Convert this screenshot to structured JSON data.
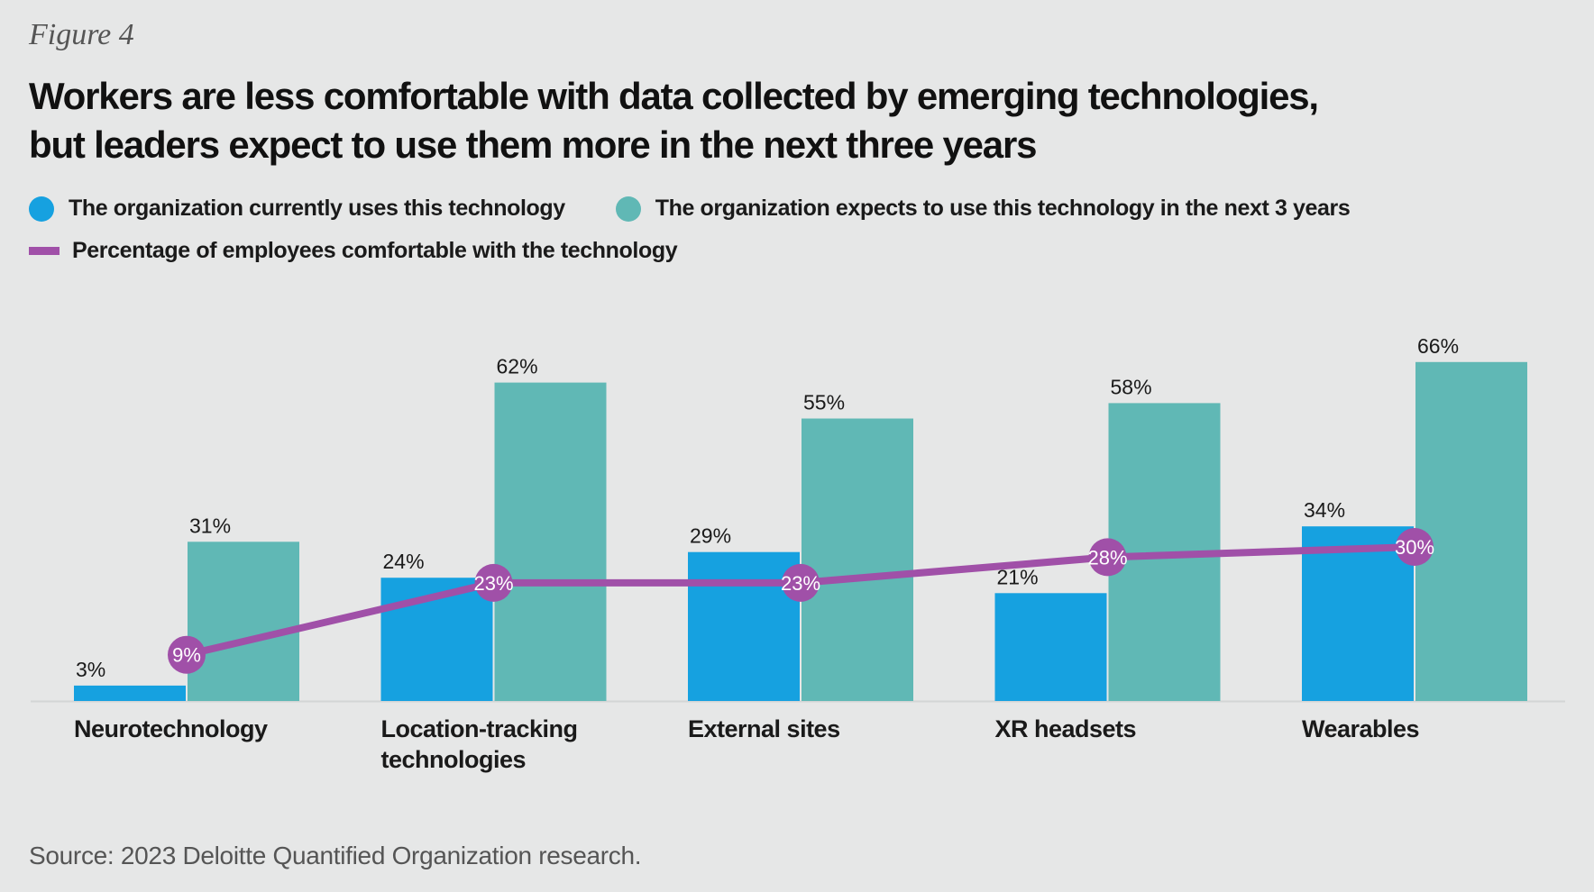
{
  "header": {
    "eyebrow": "Figure 4",
    "title_line1": "Workers are less comfortable with data collected by emerging technologies,",
    "title_line2": "but leaders expect to use them more in the next three years"
  },
  "legend": {
    "current": "The organization currently uses this technology",
    "expected": "The organization expects to use this technology in the next 3 years",
    "comfort": "Percentage of employees comfortable with the technology"
  },
  "source": "Source: 2023 Deloitte Quantified Organization research.",
  "colors": {
    "current": "#16a1e0",
    "expected": "#60b8b5",
    "comfort": "#a050a8",
    "baseline": "#d3d5d5",
    "text": "#1a1a1a"
  },
  "chart_data": {
    "type": "bar",
    "categories": [
      [
        "Neurotechnology"
      ],
      [
        "Location-tracking",
        "technologies"
      ],
      [
        "External sites"
      ],
      [
        "XR headsets"
      ],
      [
        "Wearables"
      ]
    ],
    "series": [
      {
        "name": "The organization currently uses this technology",
        "kind": "bar",
        "values": [
          3,
          24,
          29,
          21,
          34
        ],
        "labels": [
          "3%",
          "24%",
          "29%",
          "21%",
          "34%"
        ]
      },
      {
        "name": "The organization expects to use this technology in the next 3 years",
        "kind": "bar",
        "values": [
          31,
          62,
          55,
          58,
          66
        ],
        "labels": [
          "31%",
          "62%",
          "55%",
          "58%",
          "66%"
        ]
      },
      {
        "name": "Percentage of employees comfortable with the technology",
        "kind": "line",
        "values": [
          9,
          23,
          23,
          28,
          30
        ],
        "labels": [
          "9%",
          "23%",
          "23%",
          "28%",
          "30%"
        ]
      }
    ],
    "ylim": [
      0,
      70
    ],
    "grid": false,
    "legend_position": "top-left"
  }
}
